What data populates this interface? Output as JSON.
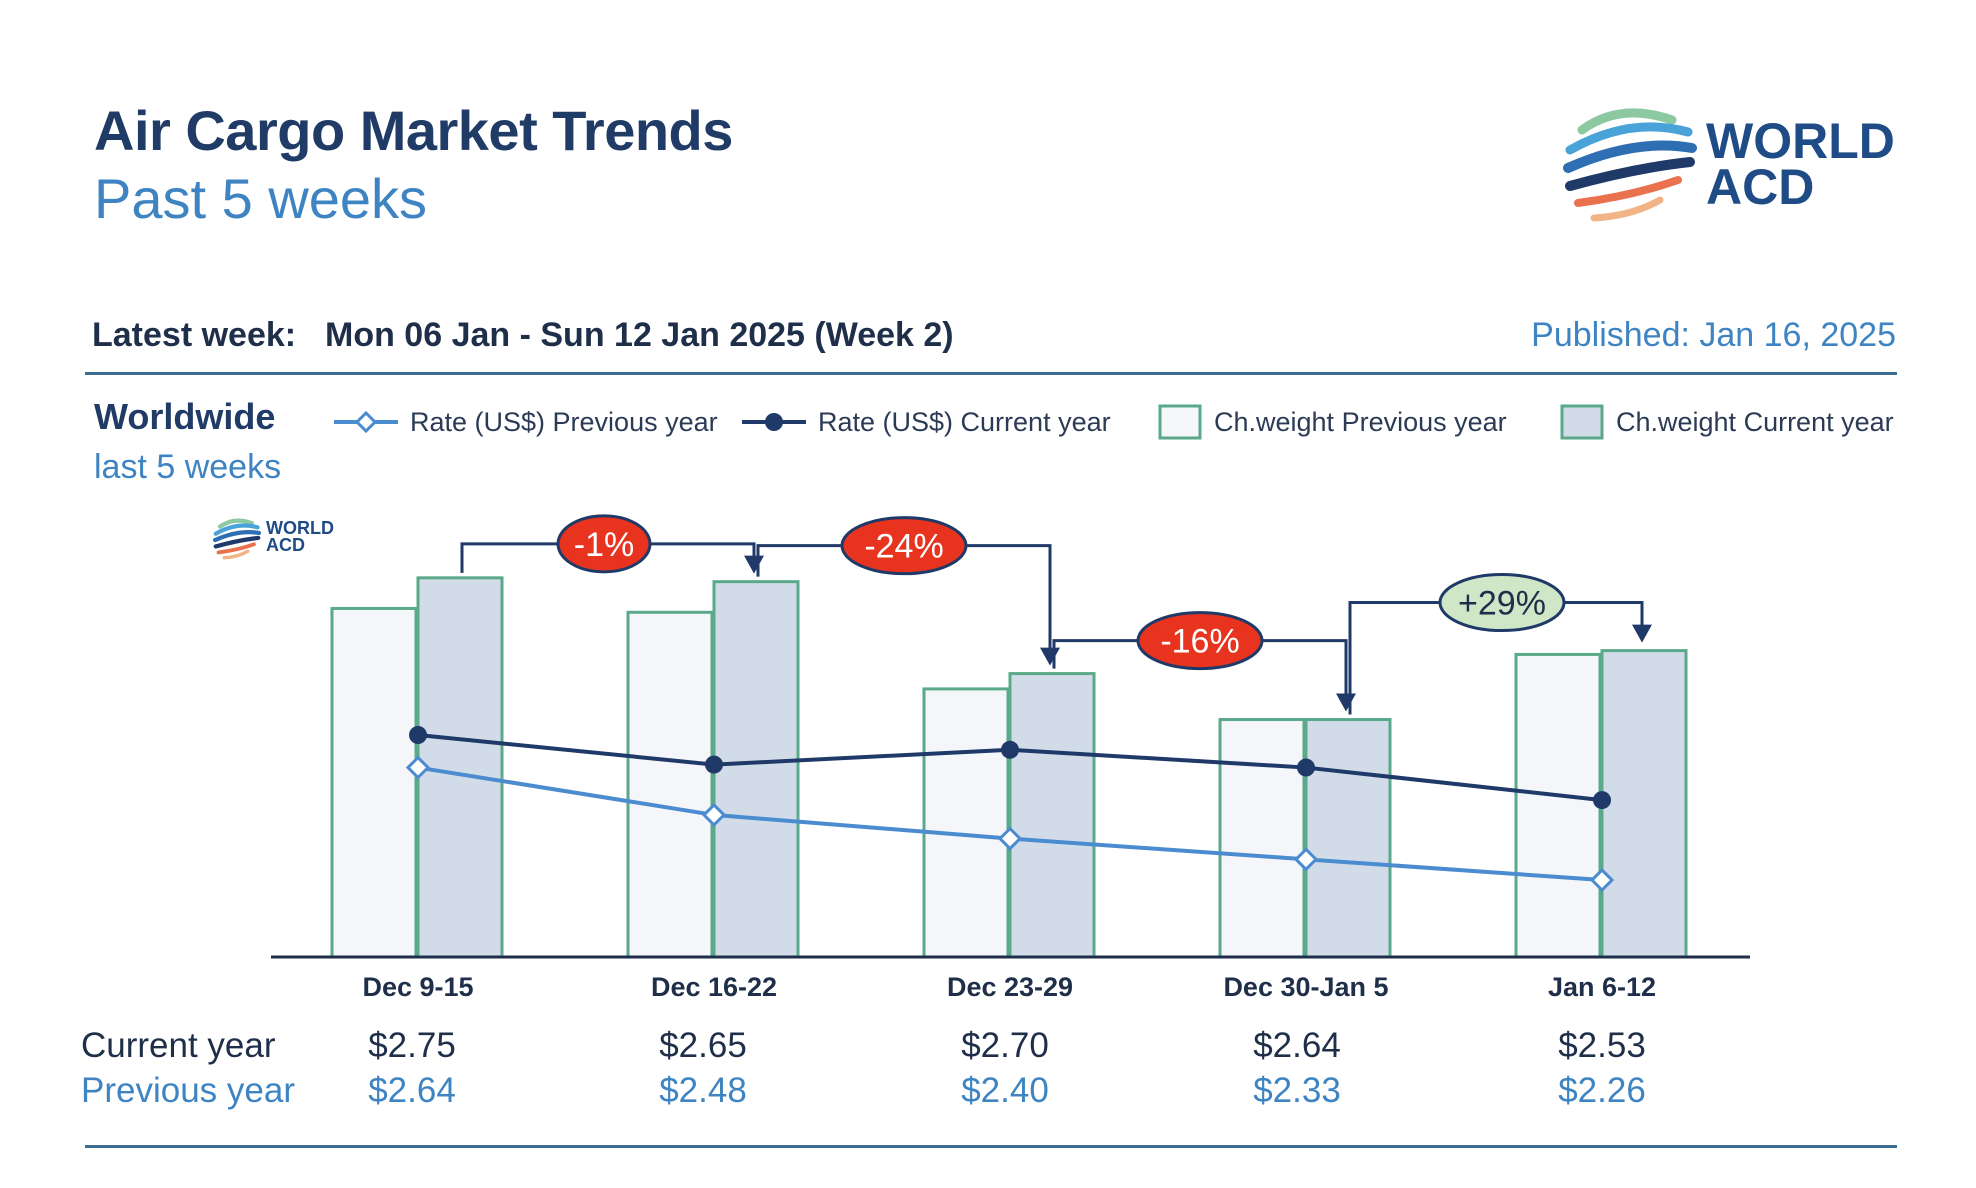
{
  "header": {
    "title": "Air Cargo Market Trends",
    "subtitle": "Past 5 weeks",
    "latest_label": "Latest week:",
    "latest_value": "Mon 06 Jan - Sun 12 Jan 2025 (Week 2)",
    "published": "Published: Jan 16, 2025"
  },
  "logo": {
    "line1": "WORLD",
    "line2": "ACD"
  },
  "section": {
    "region": "Worldwide",
    "period": "last 5 weeks"
  },
  "legend": [
    {
      "label": "Rate (US$) Previous year",
      "icon": "line-open-diamond-icon"
    },
    {
      "label": "Rate (US$) Current year",
      "icon": "line-filled-circle-icon"
    },
    {
      "label": "Ch.weight Previous year",
      "icon": "open-box-icon"
    },
    {
      "label": "Ch.weight Current year",
      "icon": "filled-box-icon"
    }
  ],
  "table": {
    "current_label": "Current year",
    "previous_label": "Previous year"
  },
  "colors": {
    "title": "#1f3b66",
    "accent": "#3f84c2",
    "bar_prev_fill": "#f5f6fa",
    "bar_cur_fill": "#d2dce8",
    "bar_stroke": "#5aa98a",
    "rate_cur": "#1f3a68",
    "rate_prev": "#4a8ccf",
    "badge_negative": "#e8331e",
    "badge_positive": "#cfe6c7"
  },
  "chart_data": {
    "type": "bar",
    "categories": [
      "Dec 9-15",
      "Dec 16-22",
      "Dec 23-29",
      "Dec 30-Jan 5",
      "Jan 6-12"
    ],
    "series": [
      {
        "name": "Ch.weight Previous year",
        "kind": "bar",
        "values": [
          0.91,
          0.9,
          0.7,
          0.62,
          0.79
        ]
      },
      {
        "name": "Ch.weight Current year",
        "kind": "bar",
        "values": [
          0.99,
          0.98,
          0.74,
          0.62,
          0.8
        ]
      },
      {
        "name": "Rate (US$) Current year",
        "kind": "line",
        "values": [
          2.75,
          2.65,
          2.7,
          2.64,
          2.53
        ],
        "labels": [
          "$2.75",
          "$2.65",
          "$2.70",
          "$2.64",
          "$2.53"
        ]
      },
      {
        "name": "Rate (US$) Previous year",
        "kind": "line",
        "values": [
          2.64,
          2.48,
          2.4,
          2.33,
          2.26
        ],
        "labels": [
          "$2.64",
          "$2.48",
          "$2.40",
          "$2.33",
          "$2.26"
        ]
      }
    ],
    "changes": [
      {
        "label": "-1%",
        "sign": "negative"
      },
      {
        "label": "-24%",
        "sign": "negative"
      },
      {
        "label": "-16%",
        "sign": "negative"
      },
      {
        "label": "+29%",
        "sign": "positive"
      }
    ],
    "grid": false,
    "legend_position": "top"
  }
}
